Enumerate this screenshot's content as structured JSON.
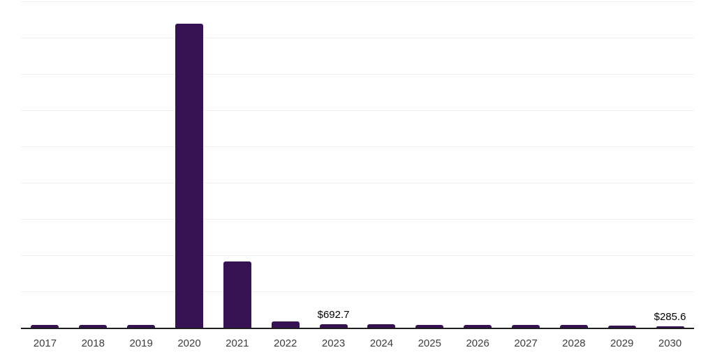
{
  "chart_data": {
    "type": "bar",
    "title": "",
    "xlabel": "",
    "ylabel": "",
    "categories": [
      "2017",
      "2018",
      "2019",
      "2020",
      "2021",
      "2022",
      "2023",
      "2024",
      "2025",
      "2026",
      "2027",
      "2028",
      "2029",
      "2030"
    ],
    "values": [
      620,
      620,
      620,
      60600,
      13200,
      1220,
      692.7,
      660,
      610,
      600,
      600,
      600,
      410,
      285.6
    ],
    "point_labels": [
      {
        "category": "2023",
        "text": "$692.7"
      },
      {
        "category": "2030",
        "text": "$285.6"
      }
    ],
    "ylim": [
      0,
      65000
    ],
    "grid": "horizontal",
    "gridline_count": 9,
    "legend": "none",
    "colors": {
      "bar": "#371253",
      "gridline": "#f0f0f0",
      "axis": "#1f1f1f",
      "tick_label": "#3d3d3d",
      "data_label": "#000000",
      "background": "#ffffff"
    }
  }
}
